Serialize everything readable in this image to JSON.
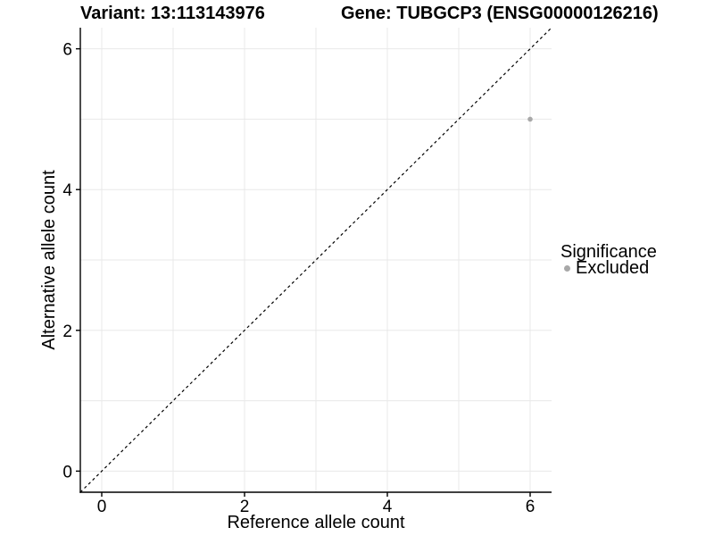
{
  "chart_data": {
    "type": "scatter",
    "title_left": "Variant: 13:113143976",
    "title_right": "Gene: TUBGCP3 (ENSG00000126216)",
    "xlabel": "Reference allele count",
    "ylabel": "Alternative allele count",
    "xlim": [
      -0.3,
      6.3
    ],
    "ylim": [
      -0.3,
      6.3
    ],
    "x_ticks": [
      0,
      2,
      4,
      6
    ],
    "y_ticks": [
      0,
      2,
      4,
      6
    ],
    "grid": {
      "on": true,
      "lines_at": [
        0,
        1,
        2,
        3,
        4,
        5,
        6
      ],
      "color": "#e8e8e8"
    },
    "identity_line": {
      "slope": 1,
      "intercept": 0,
      "style": "dashed",
      "color": "#000000"
    },
    "series": [
      {
        "name": "Excluded",
        "color": "#a8a8a8",
        "marker": "circle",
        "points": [
          {
            "x": 6,
            "y": 5
          }
        ]
      }
    ],
    "legend": {
      "position": "right",
      "title": "Significance",
      "entries": [
        {
          "label": "Excluded",
          "color": "#a8a8a8"
        }
      ]
    }
  },
  "colors": {
    "background": "#ffffff",
    "axis": "#000000",
    "tick_text": "#000000",
    "grid": "#e8e8e8"
  }
}
